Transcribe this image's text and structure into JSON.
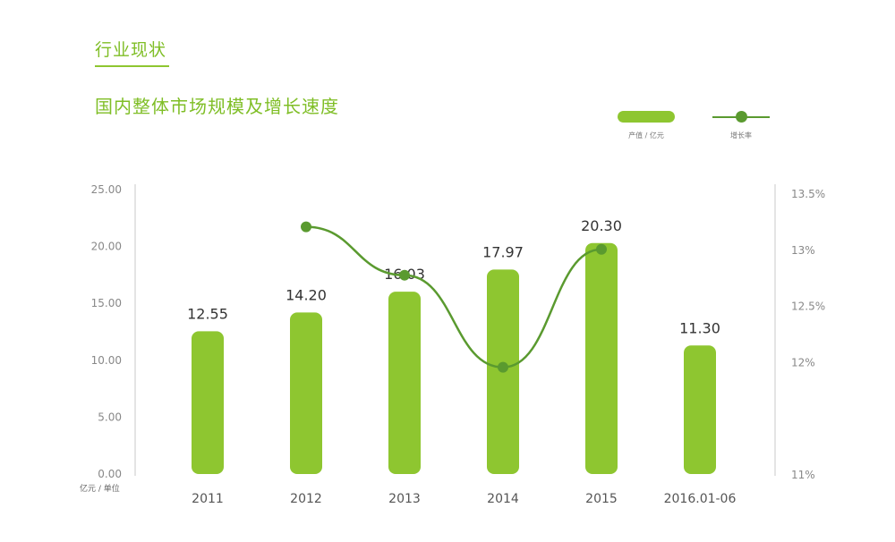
{
  "header": {
    "section_title": "行业现状",
    "chart_title": "国内整体市场规模及增长速度"
  },
  "legend": {
    "bar_label": "产值 / 亿元",
    "line_label": "增长率"
  },
  "unit_label": "亿元 / 单位",
  "colors": {
    "bar": "#8ec630",
    "line": "#5a9a2f",
    "axis": "#c8c8c8",
    "tick_text": "#888888",
    "value_text": "#333333",
    "title": "#7fbe26"
  },
  "chart_data": {
    "type": "bar",
    "categories": [
      "2011",
      "2012",
      "2013",
      "2014",
      "2015",
      "2016.01-06"
    ],
    "series": [
      {
        "name": "产值 / 亿元",
        "type": "bar",
        "axis": "left",
        "values": [
          12.55,
          14.2,
          16.03,
          17.97,
          20.3,
          11.3
        ],
        "data_labels": [
          "12.55",
          "14.20",
          "16.03",
          "17.97",
          "20.30",
          "11.30"
        ]
      },
      {
        "name": "增长率",
        "type": "line",
        "axis": "right",
        "values": [
          null,
          13.2,
          12.77,
          11.95,
          13.0,
          null
        ],
        "smooth": true
      }
    ],
    "y_left": {
      "ylim": [
        0,
        25
      ],
      "ticks": [
        0,
        5,
        10,
        15,
        20,
        25
      ],
      "tick_labels": [
        "0.00",
        "5.00",
        "10.00",
        "15.00",
        "20.00",
        "25.00"
      ]
    },
    "y_right": {
      "ylim": [
        11,
        13.5
      ],
      "ticks": [
        11,
        12,
        12.5,
        13,
        13.5
      ],
      "tick_labels": [
        "11%",
        "12%",
        "12.5%",
        "13%",
        "13.5%"
      ]
    },
    "grid": false,
    "legend_position": "top-right"
  }
}
